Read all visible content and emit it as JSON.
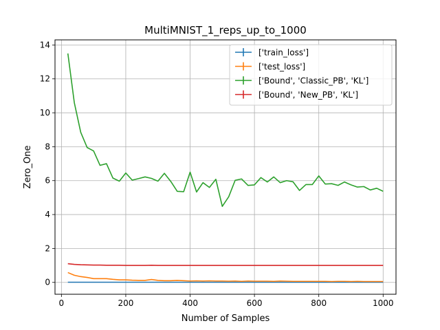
{
  "chart_data": {
    "type": "line",
    "title": "MultiMNIST_1_reps_up_to_1000",
    "xlabel": "Number of Samples",
    "ylabel": "Zero_One",
    "xlim": [
      -20,
      1040
    ],
    "ylim": [
      -0.7,
      14.3
    ],
    "xticks": [
      0,
      200,
      400,
      600,
      800,
      1000
    ],
    "yticks": [
      0,
      2,
      4,
      6,
      8,
      10,
      12,
      14
    ],
    "grid": true,
    "legend_position": "top-right",
    "x": [
      20,
      40,
      60,
      80,
      100,
      120,
      140,
      160,
      180,
      200,
      220,
      240,
      260,
      280,
      300,
      320,
      340,
      360,
      380,
      400,
      420,
      440,
      460,
      480,
      500,
      520,
      540,
      560,
      580,
      600,
      620,
      640,
      660,
      680,
      700,
      720,
      740,
      760,
      780,
      800,
      820,
      840,
      860,
      880,
      900,
      920,
      940,
      960,
      980,
      1000
    ],
    "series": [
      {
        "name": "['train_loss']",
        "color": "#1f77b4",
        "values": [
          0.01,
          0.01,
          0.01,
          0.01,
          0.01,
          0.01,
          0.01,
          0.01,
          0.01,
          0.01,
          0.01,
          0.01,
          0.01,
          0.01,
          0.01,
          0.01,
          0.01,
          0.01,
          0.01,
          0.01,
          0.01,
          0.01,
          0.01,
          0.01,
          0.01,
          0.01,
          0.01,
          0.01,
          0.01,
          0.01,
          0.01,
          0.01,
          0.01,
          0.01,
          0.01,
          0.01,
          0.01,
          0.01,
          0.01,
          0.01,
          0.01,
          0.01,
          0.01,
          0.01,
          0.01,
          0.01,
          0.01,
          0.01,
          0.01,
          0.01
        ]
      },
      {
        "name": "['test_loss']",
        "color": "#ff7f0e",
        "values": [
          0.58,
          0.42,
          0.34,
          0.29,
          0.22,
          0.22,
          0.22,
          0.18,
          0.15,
          0.15,
          0.13,
          0.12,
          0.12,
          0.17,
          0.12,
          0.1,
          0.1,
          0.12,
          0.1,
          0.08,
          0.09,
          0.08,
          0.09,
          0.08,
          0.08,
          0.07,
          0.08,
          0.06,
          0.08,
          0.07,
          0.07,
          0.07,
          0.06,
          0.08,
          0.07,
          0.06,
          0.06,
          0.06,
          0.06,
          0.06,
          0.06,
          0.05,
          0.06,
          0.06,
          0.05,
          0.06,
          0.05,
          0.05,
          0.05,
          0.05
        ]
      },
      {
        "name": "['Bound', 'Classic_PB', 'KL']",
        "color": "#2ca02c",
        "values": [
          13.5,
          10.6,
          8.85,
          7.95,
          7.75,
          6.9,
          7.0,
          6.15,
          5.97,
          6.45,
          6.03,
          6.12,
          6.22,
          6.13,
          5.97,
          6.43,
          5.95,
          5.37,
          5.35,
          6.5,
          5.33,
          5.88,
          5.6,
          6.08,
          4.48,
          5.05,
          6.02,
          6.1,
          5.72,
          5.75,
          6.18,
          5.92,
          6.22,
          5.88,
          6.0,
          5.93,
          5.42,
          5.77,
          5.77,
          6.28,
          5.8,
          5.82,
          5.72,
          5.92,
          5.75,
          5.62,
          5.65,
          5.45,
          5.55,
          5.37
        ]
      },
      {
        "name": "['Bound', 'New_PB', 'KL']",
        "color": "#d62728",
        "values": [
          1.1,
          1.06,
          1.04,
          1.03,
          1.02,
          1.02,
          1.01,
          1.01,
          1.01,
          1.0,
          1.0,
          1.0,
          1.0,
          1.01,
          1.0,
          1.0,
          1.0,
          1.0,
          1.0,
          1.0,
          1.0,
          1.0,
          1.0,
          1.0,
          1.0,
          1.0,
          1.0,
          1.0,
          1.0,
          1.0,
          1.0,
          1.0,
          1.0,
          1.0,
          1.0,
          1.0,
          1.0,
          1.0,
          1.0,
          1.0,
          1.0,
          1.0,
          1.0,
          1.0,
          1.0,
          1.0,
          1.0,
          1.0,
          1.0,
          1.0
        ]
      }
    ]
  }
}
